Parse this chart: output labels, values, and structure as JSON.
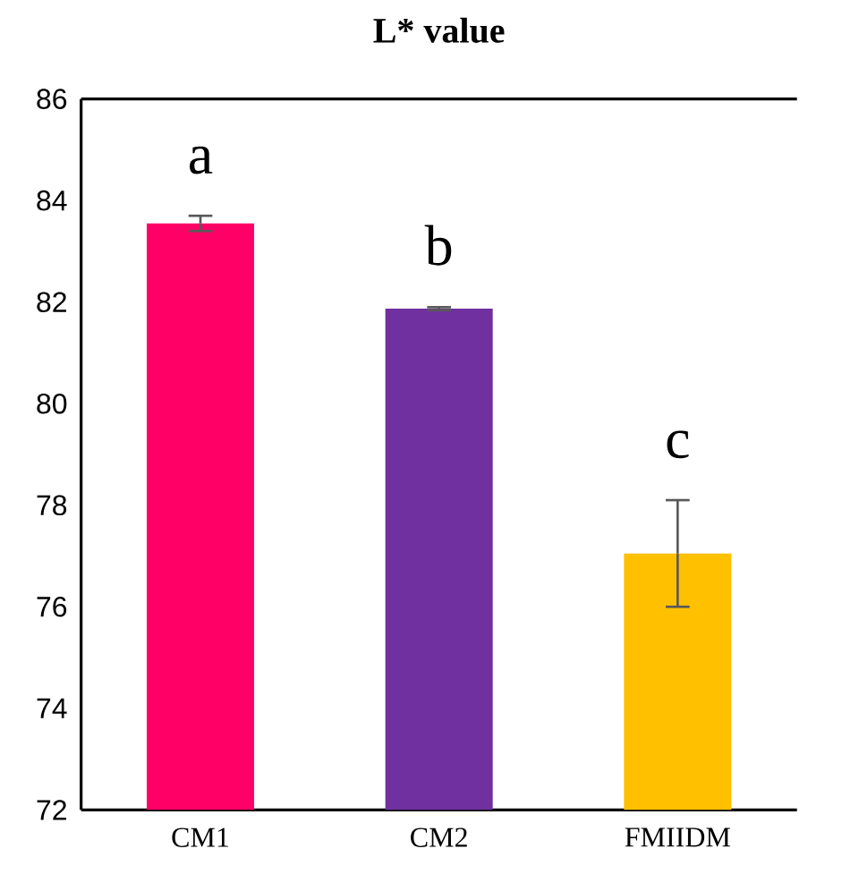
{
  "chart_data": {
    "type": "bar",
    "title": "**L* value**",
    "categories": [
      "CM1",
      "CM2",
      "FMIIDM"
    ],
    "values": [
      83.55,
      81.87,
      77.05
    ],
    "colors": [
      "#ff0066",
      "#7030a0",
      "#ffc000"
    ],
    "errors": [
      0.15,
      0.03,
      1.05
    ],
    "ylim": [
      72,
      86
    ],
    "yticks": [
      72,
      74,
      76,
      78,
      80,
      82,
      84,
      86
    ],
    "annotations": [
      "a",
      "b",
      "c"
    ]
  }
}
